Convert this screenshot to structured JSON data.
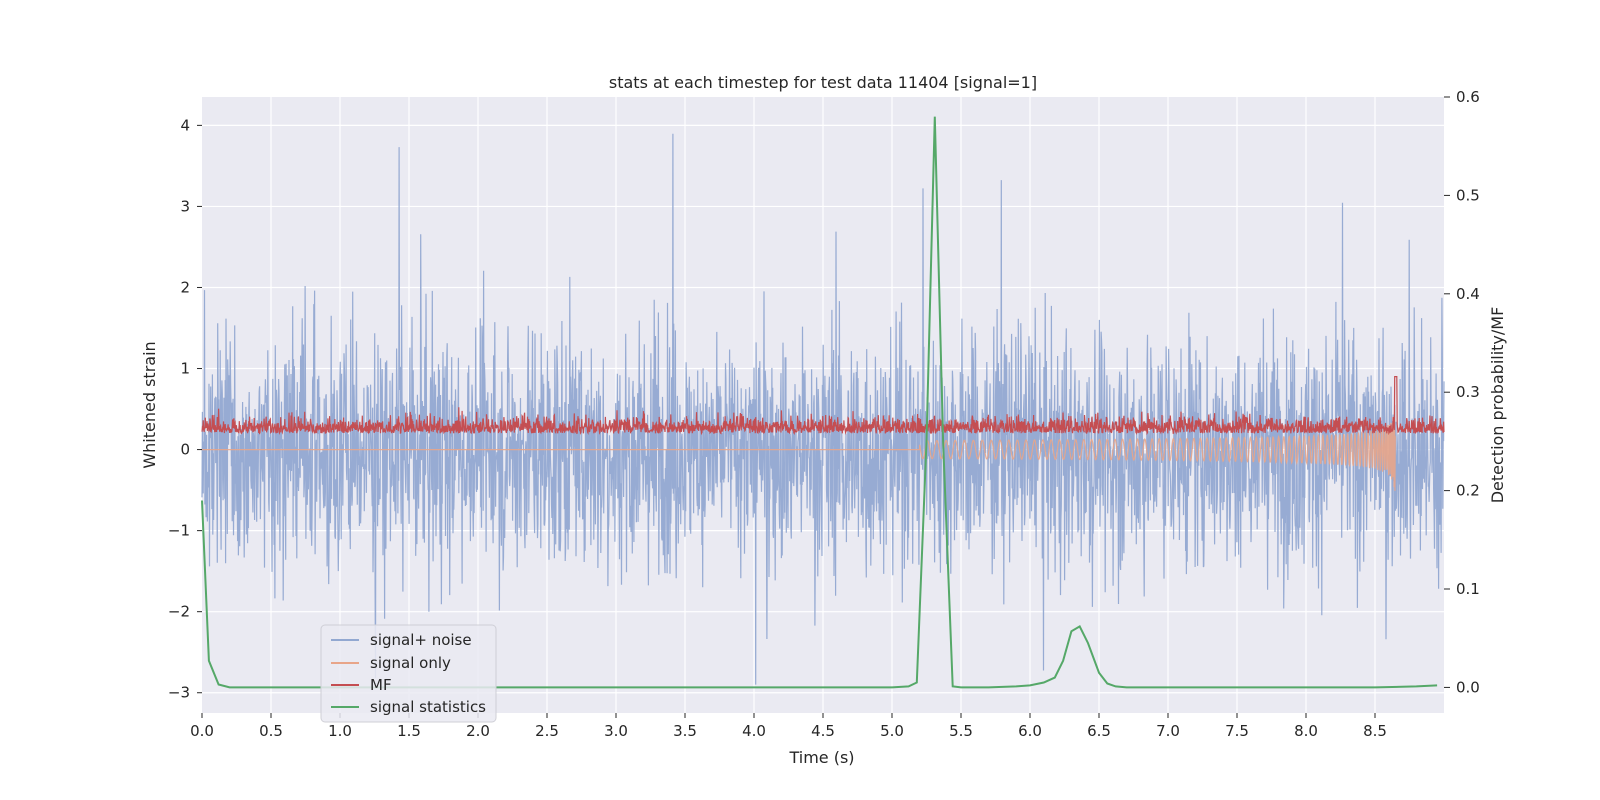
{
  "chart_data": {
    "type": "line",
    "title": "stats at each timestep for test data 11404 [signal=1]",
    "xlabel": "Time (s)",
    "ylabel": "Whitened strain",
    "y2label": "Detection probability/MF",
    "xlim": [
      0.0,
      9.0
    ],
    "ylim": [
      -3.25,
      4.35
    ],
    "y2lim": [
      -0.026,
      0.6
    ],
    "xticks": [
      0.0,
      0.5,
      1.0,
      1.5,
      2.0,
      2.5,
      3.0,
      3.5,
      4.0,
      4.5,
      5.0,
      5.5,
      6.0,
      6.5,
      7.0,
      7.5,
      8.0,
      8.5
    ],
    "xtick_labels": [
      "0.0",
      "0.5",
      "1.0",
      "1.5",
      "2.0",
      "2.5",
      "3.0",
      "3.5",
      "4.0",
      "4.5",
      "5.0",
      "5.5",
      "6.0",
      "6.5",
      "7.0",
      "7.5",
      "8.0",
      "8.5"
    ],
    "yticks": [
      4,
      3,
      2,
      1,
      0,
      -1,
      -2,
      -3
    ],
    "ytick_labels": [
      "4",
      "3",
      "2",
      "1",
      "0",
      "−1",
      "−2",
      "−3"
    ],
    "y2ticks": [
      0.6,
      0.5,
      0.4,
      0.3,
      0.2,
      0.1,
      0.0
    ],
    "y2tick_labels": [
      "0.6",
      "0.5",
      "0.4",
      "0.3",
      "0.2",
      "0.1",
      "0.0"
    ],
    "grid": true,
    "legend_position": "lower-left",
    "series": [
      {
        "name": "signal+ noise",
        "axis": "left",
        "color": "#92a8d1",
        "description_stats": {
          "approx_min": -2.9,
          "approx_max": 4.0,
          "mean": 0.0
        }
      },
      {
        "name": "signal only",
        "axis": "left",
        "color": "#e8a589",
        "chirp_end_time": 8.65,
        "chirp_peak_amplitude": 0.8
      },
      {
        "name": "MF",
        "axis": "left",
        "color": "#c44e52",
        "approx_range": [
          0.0,
          0.9
        ],
        "peak_time": 8.65
      },
      {
        "name": "signal statistics",
        "axis": "right",
        "color": "#55a868",
        "x": [
          0.0,
          0.05,
          0.12,
          0.2,
          0.3,
          0.5,
          1.0,
          2.0,
          3.0,
          4.0,
          5.0,
          5.12,
          5.18,
          5.25,
          5.31,
          5.37,
          5.44,
          5.5,
          5.7,
          5.9,
          6.0,
          6.1,
          6.18,
          6.24,
          6.3,
          6.36,
          6.42,
          6.5,
          6.56,
          6.62,
          6.7,
          7.0,
          8.0,
          8.5,
          8.8,
          8.95
        ],
        "values": [
          0.19,
          0.027,
          0.003,
          0.0,
          0.0,
          0.0,
          0.0,
          0.0,
          0.0,
          0.0,
          0.0,
          0.001,
          0.005,
          0.25,
          0.58,
          0.25,
          0.001,
          0.0,
          0.0,
          0.001,
          0.002,
          0.005,
          0.01,
          0.027,
          0.057,
          0.062,
          0.045,
          0.015,
          0.004,
          0.001,
          0.0,
          0.0,
          0.0,
          0.0,
          0.001,
          0.002
        ]
      }
    ]
  }
}
